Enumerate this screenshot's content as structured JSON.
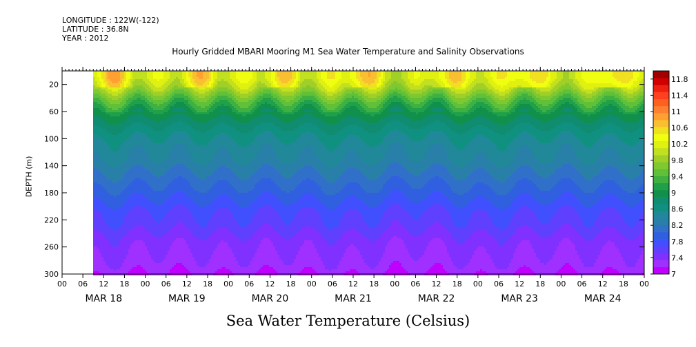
{
  "header": {
    "longitude": "LONGITUDE : 122W(-122)",
    "latitude": "LATITUDE : 36.8N",
    "year": "YEAR : 2012"
  },
  "footer_title": "Sea Water Temperature (Celsius)",
  "chart_data": {
    "type": "heatmap",
    "title": "Hourly Gridded MBARI Mooring M1 Sea Water Temperature and Salinity Observations",
    "ylabel": "DEPTH (m)",
    "xlabel": "",
    "y_inverted": true,
    "ylim": [
      0,
      300
    ],
    "y_ticks": [
      20,
      60,
      100,
      140,
      180,
      220,
      260,
      300
    ],
    "x_range_hours": [
      0,
      168
    ],
    "data_start_hour": 9,
    "x_hour_ticks": [
      "00",
      "06",
      "12",
      "18",
      "00",
      "06",
      "12",
      "18",
      "00",
      "06",
      "12",
      "18",
      "00",
      "06",
      "12",
      "18",
      "00",
      "06",
      "12",
      "18",
      "00",
      "06",
      "12",
      "18",
      "00",
      "06",
      "12",
      "18",
      "00"
    ],
    "days": [
      "MAR 18",
      "MAR 19",
      "MAR 20",
      "MAR 21",
      "MAR 22",
      "MAR 23",
      "MAR 24"
    ],
    "colorbar": {
      "min": 7.0,
      "max": 12.0,
      "step": 0.2,
      "labels": [
        "11.8",
        "11.4",
        "11",
        "10.6",
        "10.2",
        "9.8",
        "9.4",
        "9",
        "8.6",
        "8.2",
        "7.8",
        "7.4",
        "7"
      ],
      "colors": [
        "#c000ff",
        "#a030ff",
        "#8030ff",
        "#6040ff",
        "#4050ff",
        "#3060e0",
        "#3070c8",
        "#2880a8",
        "#208898",
        "#109080",
        "#108c70",
        "#10904a",
        "#20a048",
        "#40b040",
        "#60c038",
        "#80c830",
        "#a0d028",
        "#c0e020",
        "#e0f010",
        "#f0ff10",
        "#f0e020",
        "#f8c030",
        "#ffa030",
        "#ff8030",
        "#ff6020",
        "#ff4020",
        "#f02010",
        "#d00000",
        "#a00000"
      ]
    },
    "depth_profile": [
      {
        "depth": 10,
        "temp": 10.7
      },
      {
        "depth": 25,
        "temp": 10.4
      },
      {
        "depth": 40,
        "temp": 9.9
      },
      {
        "depth": 55,
        "temp": 9.5
      },
      {
        "depth": 70,
        "temp": 9.2
      },
      {
        "depth": 90,
        "temp": 8.9
      },
      {
        "depth": 110,
        "temp": 8.7
      },
      {
        "depth": 130,
        "temp": 8.6
      },
      {
        "depth": 150,
        "temp": 8.4
      },
      {
        "depth": 170,
        "temp": 8.2
      },
      {
        "depth": 190,
        "temp": 8.0
      },
      {
        "depth": 210,
        "temp": 7.8
      },
      {
        "depth": 230,
        "temp": 7.7
      },
      {
        "depth": 250,
        "temp": 7.5
      },
      {
        "depth": 270,
        "temp": 7.4
      },
      {
        "depth": 290,
        "temp": 7.3
      },
      {
        "depth": 300,
        "temp": 7.2
      }
    ]
  }
}
